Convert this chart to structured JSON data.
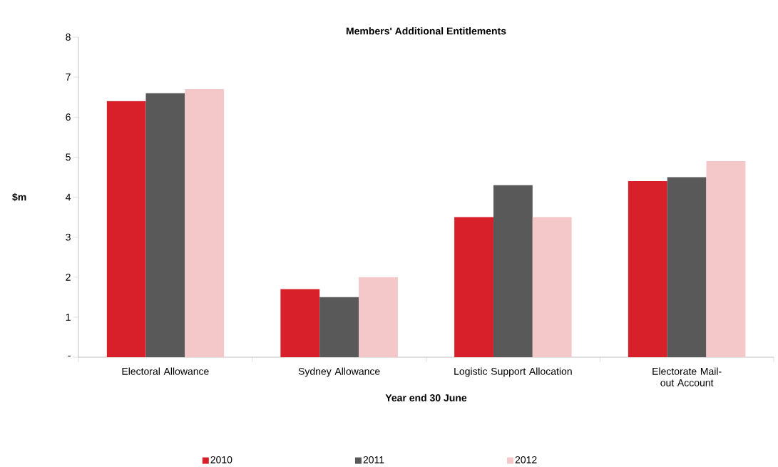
{
  "chart_data": {
    "type": "bar",
    "title": "Members' Additional Entitlements",
    "xlabel": "Year end 30 June",
    "ylabel": "$m",
    "categories": [
      "Electoral Allowance",
      "Sydney Allowance",
      "Logistic Support Allocation",
      "Electorate Mail-out Account"
    ],
    "series": [
      {
        "name": "2010",
        "color": "#d7202a",
        "values": [
          6.4,
          1.7,
          3.5,
          4.4
        ]
      },
      {
        "name": "2011",
        "color": "#595959",
        "values": [
          6.6,
          1.5,
          4.3,
          4.5
        ]
      },
      {
        "name": "2012",
        "color": "#f4c7c8",
        "values": [
          6.7,
          2.0,
          3.5,
          4.9
        ]
      }
    ],
    "ylim": [
      0,
      8
    ],
    "yticks": [
      {
        "value": 0,
        "label": "-"
      },
      1,
      2,
      3,
      4,
      5,
      6,
      7,
      8
    ],
    "legend": "bottom"
  }
}
